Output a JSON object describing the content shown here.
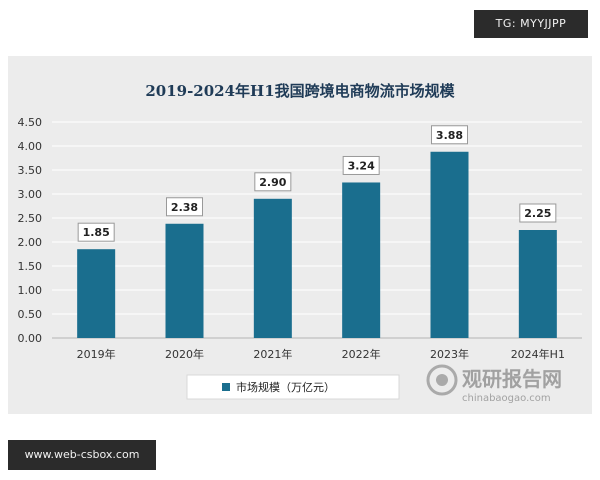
{
  "badges": {
    "top_right": "TG: MYYJJPP",
    "bottom_left": "www.web-csbox.com"
  },
  "watermark": {
    "main": "观研报告网",
    "sub": "chinabaogao.com"
  },
  "colors": {
    "bar": "#1a6e8e",
    "panel": "#ececec",
    "gridline": "#ffffff",
    "title": "#1f3b57"
  },
  "chart_data": {
    "type": "bar",
    "title": "2019-2024年H1我国跨境电商物流市场规模",
    "categories": [
      "2019年",
      "2020年",
      "2021年",
      "2022年",
      "2023年",
      "2024年H1"
    ],
    "series": [
      {
        "name": "市场规模（万亿元）",
        "values": [
          1.85,
          2.38,
          2.9,
          3.24,
          3.88,
          2.25
        ],
        "labels": [
          "1.85",
          "2.38",
          "2.90",
          "3.24",
          "3.88",
          "2.25"
        ]
      }
    ],
    "yticks": [
      "0.00",
      "0.50",
      "1.00",
      "1.50",
      "2.00",
      "2.50",
      "3.00",
      "3.50",
      "4.00",
      "4.50"
    ],
    "ylim": [
      0,
      4.5
    ],
    "xlabel": "",
    "ylabel": "",
    "grid": true,
    "legend": "bottom"
  }
}
